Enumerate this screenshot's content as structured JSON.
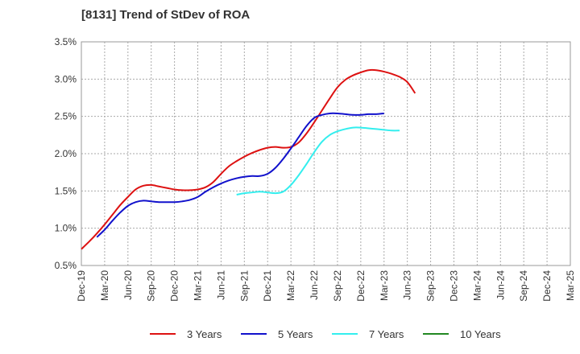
{
  "title": "[8131]  Trend of StDev of ROA",
  "chart_data": {
    "type": "line",
    "title": "[8131]  Trend of StDev of ROA",
    "xlabel": "",
    "ylabel": "",
    "x_ticks": [
      "Dec-19",
      "Mar-20",
      "Jun-20",
      "Sep-20",
      "Dec-20",
      "Mar-21",
      "Jun-21",
      "Sep-21",
      "Dec-21",
      "Mar-22",
      "Jun-22",
      "Sep-22",
      "Dec-22",
      "Mar-23",
      "Jun-23",
      "Sep-23",
      "Dec-23",
      "Mar-24",
      "Jun-24",
      "Sep-24",
      "Dec-24",
      "Mar-25"
    ],
    "y_ticks": [
      "0.5%",
      "1.0%",
      "1.5%",
      "2.0%",
      "2.5%",
      "3.0%",
      "3.5%"
    ],
    "ylim": [
      0.5,
      3.5
    ],
    "grid": true,
    "legend_position": "bottom",
    "series": [
      {
        "name": "3 Years",
        "color": "#dd1111",
        "start_index": 0,
        "values": [
          0.72,
          0.82,
          0.93,
          1.05,
          1.18,
          1.31,
          1.42,
          1.52,
          1.57,
          1.58,
          1.56,
          1.54,
          1.52,
          1.51,
          1.51,
          1.52,
          1.55,
          1.62,
          1.73,
          1.83,
          1.9,
          1.96,
          2.01,
          2.05,
          2.08,
          2.09,
          2.08,
          2.09,
          2.15,
          2.27,
          2.42,
          2.58,
          2.74,
          2.89,
          2.99,
          3.05,
          3.09,
          3.12,
          3.12,
          3.1,
          3.07,
          3.03,
          2.96,
          2.81
        ]
      },
      {
        "name": "5 Years",
        "color": "#1111cc",
        "start_index": 2,
        "values": [
          0.88,
          0.98,
          1.1,
          1.21,
          1.3,
          1.35,
          1.37,
          1.36,
          1.35,
          1.35,
          1.35,
          1.36,
          1.38,
          1.42,
          1.49,
          1.55,
          1.6,
          1.64,
          1.67,
          1.69,
          1.7,
          1.7,
          1.73,
          1.81,
          1.93,
          2.07,
          2.22,
          2.37,
          2.48,
          2.52,
          2.54,
          2.54,
          2.53,
          2.52,
          2.52,
          2.53,
          2.53,
          2.54
        ]
      },
      {
        "name": "7 Years",
        "color": "#33eeee",
        "start_index": 20,
        "values": [
          1.45,
          1.47,
          1.48,
          1.49,
          1.48,
          1.47,
          1.49,
          1.58,
          1.71,
          1.86,
          2.02,
          2.16,
          2.25,
          2.3,
          2.33,
          2.35,
          2.35,
          2.34,
          2.33,
          2.32,
          2.31,
          2.31
        ]
      },
      {
        "name": "10 Years",
        "color": "#228822",
        "start_index": 0,
        "values": []
      }
    ]
  }
}
